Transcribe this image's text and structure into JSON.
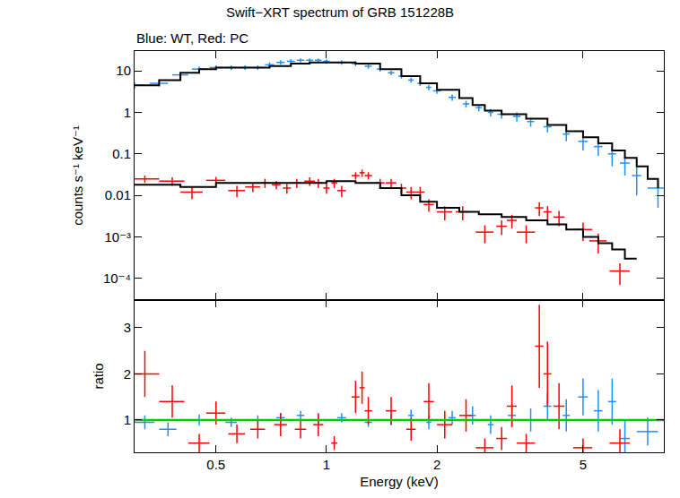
{
  "chart_data": [
    {
      "type": "scatter",
      "title": "Swift−XRT spectrum of GRB 151228B",
      "subtitle": "Blue: WT, Red: PC",
      "ylabel": "counts s⁻¹ keV⁻¹",
      "log": true,
      "tick_labels": "y",
      "xlim": [
        0.3,
        8.3
      ],
      "ylim": [
        3e-05,
        30
      ],
      "xticks": [
        0.5,
        1,
        2,
        5
      ],
      "yticks": [
        {
          "value": 0.0001,
          "label": "10⁻⁴"
        },
        {
          "value": 0.001,
          "label": "10⁻³"
        },
        0.01,
        0.1,
        1,
        10
      ],
      "series": [
        {
          "type": "scatter",
          "color": "#1e90ff",
          "marker": "cross",
          "x": [
            0.3,
            0.35,
            0.4,
            0.45,
            0.5,
            0.55,
            0.6,
            0.65,
            0.7,
            0.75,
            0.8,
            0.85,
            0.9,
            0.95,
            1.0,
            1.1,
            1.2,
            1.3,
            1.4,
            1.5,
            1.6,
            1.7,
            1.8,
            1.9,
            2.0,
            2.2,
            2.4,
            2.6,
            2.8,
            3.0,
            3.3,
            3.6,
            4.0,
            4.5,
            5.0,
            5.5,
            6.0,
            6.5,
            7.0,
            8.0
          ],
          "values": [
            4.5,
            5,
            8,
            11,
            12,
            12,
            12,
            12,
            14,
            16,
            17,
            18,
            18,
            18,
            17,
            16,
            15,
            13,
            11,
            9,
            7.5,
            6,
            5,
            4,
            3.3,
            2.3,
            1.6,
            1.3,
            1.0,
            0.9,
            0.8,
            0.6,
            0.45,
            0.3,
            0.2,
            0.15,
            0.1,
            0.06,
            0.03,
            0.015
          ],
          "yerr": [
            0.8,
            0.8,
            1.2,
            1.5,
            1.5,
            1.5,
            1.5,
            1.5,
            2,
            2,
            2,
            2,
            2,
            2,
            2,
            2,
            2,
            1.8,
            1.5,
            1.2,
            1,
            0.8,
            0.7,
            0.6,
            0.5,
            0.4,
            0.3,
            0.25,
            0.2,
            0.2,
            0.2,
            0.15,
            0.12,
            0.1,
            0.08,
            0.06,
            0.05,
            0.03,
            0.02,
            0.01
          ],
          "xerr": [
            0.02,
            0.02,
            0.02,
            0.02,
            0.02,
            0.02,
            0.02,
            0.02,
            0.02,
            0.02,
            0.02,
            0.02,
            0.02,
            0.02,
            0.02,
            0.03,
            0.03,
            0.03,
            0.03,
            0.03,
            0.03,
            0.03,
            0.03,
            0.03,
            0.05,
            0.05,
            0.05,
            0.05,
            0.05,
            0.08,
            0.08,
            0.08,
            0.1,
            0.1,
            0.15,
            0.15,
            0.15,
            0.2,
            0.2,
            0.5
          ]
        },
        {
          "type": "line",
          "color": "#000000",
          "line_style": "step",
          "x": [
            0.3,
            0.35,
            0.4,
            0.45,
            0.5,
            0.6,
            0.7,
            0.8,
            0.9,
            1.0,
            1.2,
            1.4,
            1.6,
            1.8,
            2.0,
            2.3,
            2.5,
            2.7,
            3.0,
            3.5,
            4.0,
            4.5,
            5.0,
            5.5,
            6.0,
            6.5,
            7.0,
            7.5,
            8.0
          ],
          "values": [
            4.5,
            6,
            9,
            11,
            12,
            12,
            13,
            15,
            16,
            16,
            15,
            11,
            7.5,
            5,
            3.5,
            2.2,
            1.5,
            1.1,
            0.9,
            0.7,
            0.5,
            0.35,
            0.25,
            0.18,
            0.12,
            0.08,
            0.05,
            0.025,
            0.015
          ]
        },
        {
          "type": "scatter",
          "color": "#ff0000",
          "marker": "cross",
          "x": [
            0.32,
            0.38,
            0.43,
            0.5,
            0.57,
            0.63,
            0.68,
            0.73,
            0.78,
            0.83,
            0.9,
            0.95,
            1.0,
            1.05,
            1.1,
            1.2,
            1.25,
            1.3,
            1.4,
            1.5,
            1.6,
            1.7,
            1.8,
            1.9,
            2.1,
            2.35,
            2.7,
            3.0,
            3.2,
            3.5,
            3.8,
            4.0,
            4.3,
            5.0,
            5.5,
            6.3
          ],
          "values": [
            0.025,
            0.022,
            0.012,
            0.023,
            0.013,
            0.016,
            0.02,
            0.018,
            0.015,
            0.02,
            0.022,
            0.02,
            0.015,
            0.02,
            0.013,
            0.03,
            0.035,
            0.03,
            0.02,
            0.02,
            0.015,
            0.012,
            0.012,
            0.006,
            0.004,
            0.004,
            0.0013,
            0.0018,
            0.0025,
            0.0013,
            0.005,
            0.004,
            0.003,
            0.0015,
            0.0008,
            0.00015
          ],
          "yerr": [
            0.005,
            0.005,
            0.004,
            0.005,
            0.004,
            0.004,
            0.005,
            0.004,
            0.004,
            0.005,
            0.005,
            0.005,
            0.004,
            0.005,
            0.004,
            0.006,
            0.007,
            0.006,
            0.005,
            0.005,
            0.004,
            0.004,
            0.004,
            0.002,
            0.0015,
            0.0015,
            0.0006,
            0.0007,
            0.0009,
            0.0006,
            0.0018,
            0.0015,
            0.0012,
            0.0007,
            0.0004,
            8e-05
          ],
          "xerr": [
            0.03,
            0.03,
            0.03,
            0.03,
            0.03,
            0.03,
            0.02,
            0.02,
            0.02,
            0.02,
            0.03,
            0.02,
            0.02,
            0.02,
            0.03,
            0.03,
            0.02,
            0.03,
            0.04,
            0.05,
            0.05,
            0.05,
            0.05,
            0.06,
            0.1,
            0.1,
            0.15,
            0.1,
            0.1,
            0.2,
            0.1,
            0.1,
            0.15,
            0.3,
            0.3,
            0.4
          ]
        },
        {
          "type": "line",
          "color": "#000000",
          "line_style": "step",
          "x": [
            0.3,
            0.4,
            0.5,
            0.6,
            0.8,
            1.0,
            1.2,
            1.4,
            1.6,
            1.8,
            2.0,
            2.3,
            2.6,
            3.0,
            3.5,
            4.0,
            4.5,
            5.0,
            5.5,
            6.0,
            6.5,
            7.0
          ],
          "values": [
            0.018,
            0.016,
            0.02,
            0.02,
            0.02,
            0.022,
            0.02,
            0.015,
            0.01,
            0.007,
            0.005,
            0.004,
            0.0035,
            0.003,
            0.0025,
            0.002,
            0.0015,
            0.001,
            0.0007,
            0.0005,
            0.0003,
            0.0003
          ]
        }
      ]
    },
    {
      "type": "scatter",
      "xlabel": "Energy (keV)",
      "ylabel": "ratio",
      "log": "x",
      "xlim": [
        0.3,
        8.3
      ],
      "ylim": [
        0.3,
        3.6
      ],
      "xticks": [
        0.5,
        1,
        2,
        5
      ],
      "yticks": [
        1,
        2,
        3
      ],
      "series": [
        {
          "type": "scatter",
          "color": "#1e90ff",
          "marker": "cross",
          "x": [
            0.32,
            0.37,
            0.45,
            0.55,
            0.65,
            0.75,
            0.85,
            0.95,
            1.1,
            1.3,
            1.5,
            1.7,
            1.9,
            2.2,
            2.5,
            2.8,
            3.2,
            3.6,
            4.0,
            4.5,
            5.0,
            5.5,
            6.0,
            6.5,
            7.5
          ],
          "values": [
            0.95,
            0.8,
            1.0,
            0.95,
            1.0,
            1.05,
            1.1,
            1.0,
            1.05,
            0.95,
            1.0,
            1.1,
            0.95,
            1.05,
            1.1,
            0.9,
            1.1,
            1.0,
            1.3,
            1.1,
            1.5,
            1.2,
            1.4,
            0.6,
            0.75
          ],
          "yerr": [
            0.15,
            0.15,
            0.12,
            0.1,
            0.1,
            0.1,
            0.1,
            0.1,
            0.1,
            0.1,
            0.12,
            0.12,
            0.15,
            0.15,
            0.2,
            0.2,
            0.25,
            0.25,
            0.3,
            0.35,
            0.4,
            0.45,
            0.5,
            0.4,
            0.3
          ],
          "xerr": [
            0.02,
            0.02,
            0.02,
            0.02,
            0.02,
            0.02,
            0.02,
            0.02,
            0.03,
            0.03,
            0.03,
            0.03,
            0.03,
            0.05,
            0.05,
            0.05,
            0.08,
            0.08,
            0.1,
            0.1,
            0.15,
            0.15,
            0.15,
            0.2,
            0.5
          ]
        },
        {
          "type": "scatter",
          "color": "#ff0000",
          "marker": "cross",
          "x": [
            0.32,
            0.38,
            0.45,
            0.5,
            0.57,
            0.65,
            0.75,
            0.85,
            0.95,
            1.05,
            1.2,
            1.25,
            1.3,
            1.5,
            1.7,
            1.9,
            2.1,
            2.4,
            2.7,
            3.0,
            3.2,
            3.5,
            3.8,
            4.0,
            4.3,
            5.0,
            6.3
          ],
          "values": [
            2.0,
            1.4,
            0.5,
            1.15,
            0.7,
            0.8,
            0.9,
            0.8,
            0.9,
            0.5,
            1.5,
            1.7,
            1.2,
            1.2,
            0.8,
            1.4,
            0.9,
            1.1,
            0.4,
            0.6,
            1.3,
            0.5,
            2.6,
            2.0,
            1.3,
            0.4,
            0.5
          ],
          "yerr": [
            0.5,
            0.35,
            0.2,
            0.25,
            0.2,
            0.2,
            0.25,
            0.2,
            0.25,
            0.15,
            0.35,
            0.35,
            0.3,
            0.3,
            0.25,
            0.4,
            0.3,
            0.35,
            0.2,
            0.25,
            0.45,
            0.2,
            0.9,
            0.7,
            0.5,
            0.2,
            0.3
          ],
          "xerr": [
            0.03,
            0.03,
            0.03,
            0.03,
            0.03,
            0.03,
            0.03,
            0.03,
            0.03,
            0.02,
            0.03,
            0.02,
            0.03,
            0.05,
            0.05,
            0.06,
            0.1,
            0.1,
            0.15,
            0.1,
            0.1,
            0.2,
            0.1,
            0.1,
            0.15,
            0.3,
            0.4
          ]
        },
        {
          "type": "line",
          "color": "#00cc00",
          "x": [
            0.3,
            8.3
          ],
          "values": [
            1,
            1
          ]
        }
      ]
    }
  ]
}
